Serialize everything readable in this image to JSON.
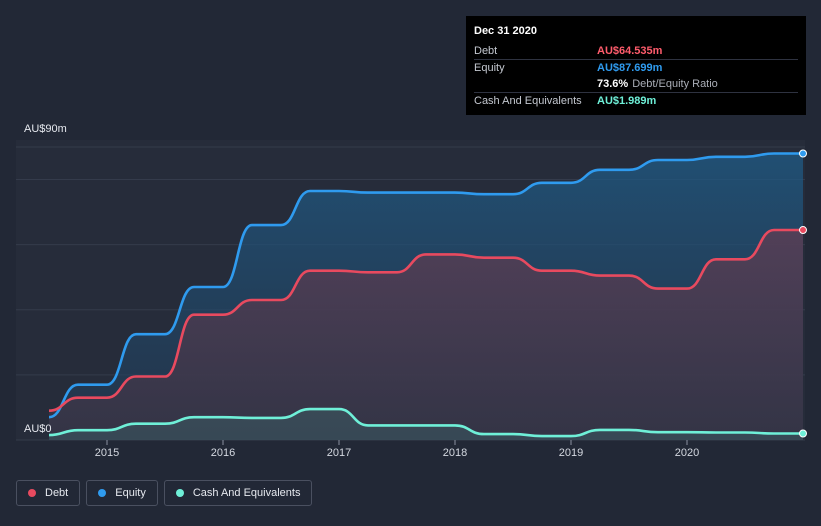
{
  "tooltip": {
    "date": "Dec 31 2020",
    "rows": [
      {
        "label": "Debt",
        "value": "AU$64.535m",
        "color": "#ff5c6c"
      },
      {
        "label": "Equity",
        "value": "AU$87.699m",
        "color": "#2f9bef"
      },
      {
        "label": "",
        "value": "73.6%",
        "extra": "Debt/Equity Ratio",
        "color": "#ffffff"
      },
      {
        "label": "Cash And Equivalents",
        "value": "AU$1.989m",
        "color": "#6ff0d8"
      }
    ]
  },
  "legend": [
    {
      "label": "Debt",
      "color": "#e84a5f"
    },
    {
      "label": "Equity",
      "color": "#2f9bef"
    },
    {
      "label": "Cash And Equivalents",
      "color": "#6ff0d8"
    }
  ],
  "chart_data": {
    "type": "area",
    "ylabel_top": "AU$90m",
    "ylabel_bottom": "AU$0",
    "ylim": [
      0,
      90
    ],
    "xlim": [
      2014.5,
      2021.0
    ],
    "x_ticks": [
      2015,
      2016,
      2017,
      2018,
      2019,
      2020
    ],
    "x_tick_labels": [
      "2015",
      "2016",
      "2017",
      "2018",
      "2019",
      "2020"
    ],
    "grid": true,
    "legend_position": "bottom-left",
    "x": [
      2014.5,
      2014.75,
      2015.0,
      2015.25,
      2015.5,
      2015.75,
      2016.0,
      2016.25,
      2016.5,
      2016.75,
      2017.0,
      2017.25,
      2017.5,
      2017.75,
      2018.0,
      2018.25,
      2018.5,
      2018.75,
      2019.0,
      2019.25,
      2019.5,
      2019.75,
      2020.0,
      2020.25,
      2020.5,
      2020.75,
      2021.0
    ],
    "series": [
      {
        "name": "Debt",
        "color": "#e84a5f",
        "values": [
          9,
          13,
          13,
          19.5,
          19.5,
          38.5,
          38.5,
          43,
          43,
          52,
          52,
          51.5,
          51.5,
          57,
          57,
          56,
          56,
          52,
          52,
          50.5,
          50.5,
          46.5,
          46.5,
          55.5,
          55.5,
          64.5,
          64.5
        ]
      },
      {
        "name": "Equity",
        "color": "#2f9bef",
        "values": [
          7,
          17,
          17,
          32.5,
          32.5,
          47,
          47,
          66,
          66,
          76.5,
          76.5,
          76,
          76,
          76,
          76,
          75.5,
          75.5,
          79,
          79,
          83,
          83,
          86,
          86,
          87,
          87,
          88,
          88
        ]
      },
      {
        "name": "Cash And Equivalents",
        "color": "#6ff0d8",
        "values": [
          1.5,
          3,
          3,
          5,
          5,
          7,
          7,
          6.8,
          6.8,
          9.5,
          9.5,
          4.5,
          4.5,
          4.5,
          4.5,
          1.8,
          1.8,
          1.2,
          1.2,
          3.1,
          3.1,
          2.4,
          2.4,
          2.3,
          2.3,
          2.0,
          2.0
        ]
      }
    ]
  }
}
